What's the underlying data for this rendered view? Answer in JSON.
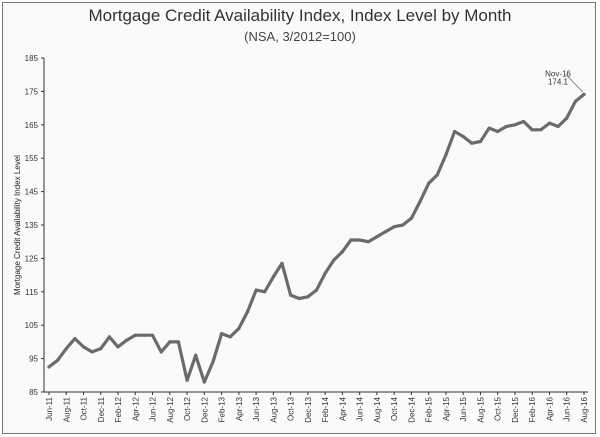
{
  "chart_data": {
    "type": "line",
    "title": "Mortgage Credit Availability Index, Index Level by Month",
    "subtitle": "(NSA, 3/2012=100)",
    "ylabel": "Mortgage Credit Availability Index Level",
    "xlabel": "",
    "ylim": [
      85,
      185
    ],
    "yticks": [
      85,
      95,
      105,
      115,
      125,
      135,
      145,
      155,
      165,
      175,
      185
    ],
    "grid": false,
    "line_color": "#6b6b6b",
    "xtick_labels": [
      "Jun-11",
      "Aug-11",
      "Oct-11",
      "Dec-11",
      "Feb-12",
      "Apr-12",
      "Jun-12",
      "Aug-12",
      "Oct-12",
      "Dec-12",
      "Feb-13",
      "Apr-13",
      "Jun-13",
      "Aug-13",
      "Oct-13",
      "Dec-13",
      "Feb-14",
      "Apr-14",
      "Jun-14",
      "Aug-14",
      "Oct-14",
      "Dec-14",
      "Feb-15",
      "Apr-15",
      "Jun-15",
      "Aug-15",
      "Oct-15",
      "Dec-15",
      "Feb-16",
      "Apr-16",
      "Jun-16",
      "Aug-16"
    ],
    "series": [
      {
        "values": [
          92.5,
          94.5,
          98,
          101,
          98.5,
          97,
          98,
          101.5,
          98.5,
          100.5,
          102,
          102,
          102,
          97,
          100,
          100,
          88.5,
          96,
          88,
          94,
          102.5,
          101.5,
          104,
          109,
          115.5,
          115,
          119.5,
          123.5,
          114,
          113,
          113.5,
          115.5,
          120.5,
          124.5,
          127,
          130.5,
          130.5,
          130,
          131.5,
          133,
          134.5,
          135,
          137,
          142,
          147.5,
          150,
          156,
          163,
          161.5,
          159.5,
          160,
          164,
          163,
          164.5,
          165,
          166,
          163.5,
          163.5,
          165.5,
          164.5,
          167,
          172,
          174.1
        ]
      }
    ],
    "annotation": {
      "label": "Nov-16",
      "value_text": "174.1"
    }
  }
}
